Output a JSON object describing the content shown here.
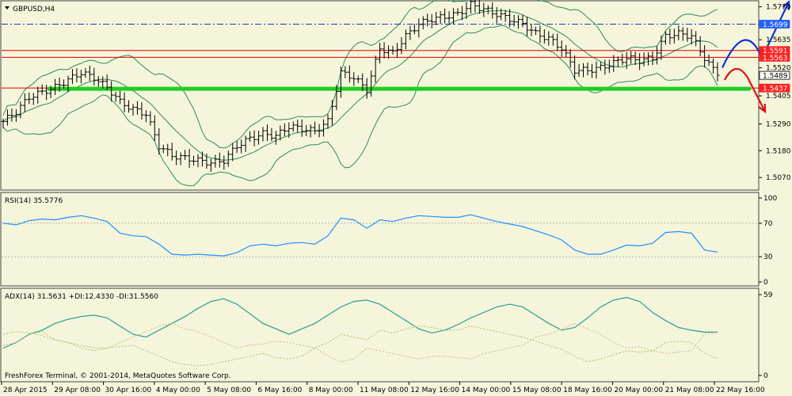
{
  "colors": {
    "background": "#f5f5dc",
    "candle": "#000000",
    "bollinger": "#2e8b57",
    "resistance_line": "#dd0000",
    "pivot_line": "#2233aa",
    "support_line": "#22cc22",
    "rsi_line": "#1e90ff",
    "adx_line": "#2a9d8f",
    "di_plus_line": "#a8c060",
    "di_minus_line": "#d6b37e",
    "forecast_up": "#1030d0",
    "forecast_down": "#e01010",
    "badge_blue": "#2060ff",
    "badge_red": "#ff2020",
    "badge_white": "#ffffff"
  },
  "chart_data": [
    {
      "type": "ohlc",
      "title": "GBPUSD,H4",
      "price_range": [
        1.5025,
        1.5785
      ],
      "y_ticks": [
        "1.5770",
        "1.5635",
        "1.5520",
        "1.5405",
        "1.5290",
        "1.5180",
        "1.5070"
      ],
      "x_ticks": [
        "28 Apr 2015",
        "29 Apr 08:00",
        "30 Apr 16:00",
        "4 May 00:00",
        "5 May 08:00",
        "6 May 16:00",
        "8 May 00:00",
        "11 May 08:00",
        "12 May 16:00",
        "14 May 00:00",
        "15 May 08:00",
        "18 May 16:00",
        "20 May 00:00",
        "21 May 08:00",
        "22 May 16:00"
      ],
      "close_path": [
        1.53,
        1.534,
        1.54,
        1.542,
        1.544,
        1.547,
        1.55,
        1.548,
        1.544,
        1.538,
        1.535,
        1.533,
        1.52,
        1.516,
        1.515,
        1.514,
        1.513,
        1.514,
        1.52,
        1.523,
        1.525,
        1.524,
        1.528,
        1.527,
        1.526,
        1.53,
        1.55,
        1.548,
        1.543,
        1.56,
        1.558,
        1.565,
        1.57,
        1.572,
        1.573,
        1.574,
        1.578,
        1.576,
        1.574,
        1.572,
        1.57,
        1.566,
        1.564,
        1.56,
        1.551,
        1.551,
        1.552,
        1.554,
        1.556,
        1.555,
        1.556,
        1.565,
        1.566,
        1.565,
        1.556,
        1.5489
      ],
      "levels": [
        {
          "kind": "pivot",
          "value": 1.5699,
          "label": "1.5699",
          "style": "dashdot"
        },
        {
          "kind": "resistance",
          "value": 1.5591,
          "label": "1.5591"
        },
        {
          "kind": "resistance",
          "value": 1.5563,
          "label": "1.5563"
        },
        {
          "kind": "current",
          "value": 1.5489,
          "label": "1.5489"
        },
        {
          "kind": "support",
          "value": 1.5437,
          "label": "1.5437"
        }
      ],
      "forecast": [
        {
          "direction": "up",
          "path": [
            1.552,
            1.57,
            1.556,
            1.579
          ]
        },
        {
          "direction": "down",
          "path": [
            1.547,
            1.553,
            1.548,
            1.534
          ]
        }
      ]
    },
    {
      "type": "line",
      "title": "RSI(14) 35.5776",
      "ylim": [
        0,
        100
      ],
      "y_ticks": [
        "100",
        "70",
        "30",
        "0"
      ],
      "levels": [
        70,
        30
      ],
      "series": [
        {
          "values": [
            70,
            68,
            73,
            75,
            74,
            77,
            79,
            76,
            72,
            58,
            55,
            54,
            45,
            33,
            32,
            33,
            32,
            31,
            35,
            43,
            45,
            43,
            46,
            47,
            45,
            55,
            76,
            74,
            64,
            74,
            72,
            76,
            79,
            78,
            77,
            77,
            80,
            76,
            72,
            69,
            66,
            61,
            56,
            50,
            38,
            33,
            33,
            38,
            44,
            43,
            46,
            59,
            60,
            58,
            38,
            35.5776
          ]
        }
      ]
    },
    {
      "type": "line",
      "title": "ADX(14) 31.5631 +DI:12.4330 -DI:31.5560",
      "ylim": [
        0,
        59
      ],
      "y_ticks": [
        "59",
        "0"
      ],
      "series": [
        {
          "values": [
            20,
            24,
            30,
            33,
            38,
            41,
            43,
            44,
            42,
            36,
            30,
            28,
            33,
            38,
            43,
            49,
            54,
            56,
            52,
            45,
            38,
            34,
            30,
            34,
            38,
            44,
            50,
            54,
            55,
            52,
            46,
            40,
            34,
            31,
            33,
            37,
            42,
            46,
            50,
            52,
            50,
            44,
            38,
            33,
            35,
            42,
            50,
            55,
            57,
            54,
            46,
            40,
            35,
            33,
            31.5631,
            31.5631
          ]
        },
        {
          "values": [
            30,
            32,
            31,
            29,
            26,
            24,
            22,
            20,
            20,
            21,
            22,
            18,
            14,
            10,
            8,
            7,
            8,
            10,
            12,
            14,
            16,
            13,
            12,
            14,
            20,
            24,
            30,
            28,
            26,
            33,
            31,
            34,
            36,
            35,
            33,
            33,
            36,
            34,
            32,
            30,
            28,
            25,
            22,
            19,
            14,
            10,
            12,
            15,
            18,
            17,
            18,
            24,
            25,
            24,
            16,
            12.433
          ]
        },
        {
          "values": [
            22,
            24,
            30,
            32,
            26,
            24,
            20,
            18,
            20,
            24,
            28,
            32,
            36,
            38,
            34,
            32,
            28,
            24,
            20,
            22,
            23,
            25,
            24,
            22,
            20,
            14,
            10,
            12,
            20,
            18,
            16,
            14,
            12,
            14,
            14,
            13,
            12,
            16,
            18,
            20,
            22,
            28,
            30,
            34,
            38,
            34,
            30,
            24,
            20,
            21,
            18,
            16,
            17,
            18,
            30,
            31.556
          ]
        }
      ]
    }
  ],
  "footer": {
    "copyright": "FreshForex Terminal, © 2001-2014, MetaQuotes Software Corp."
  }
}
